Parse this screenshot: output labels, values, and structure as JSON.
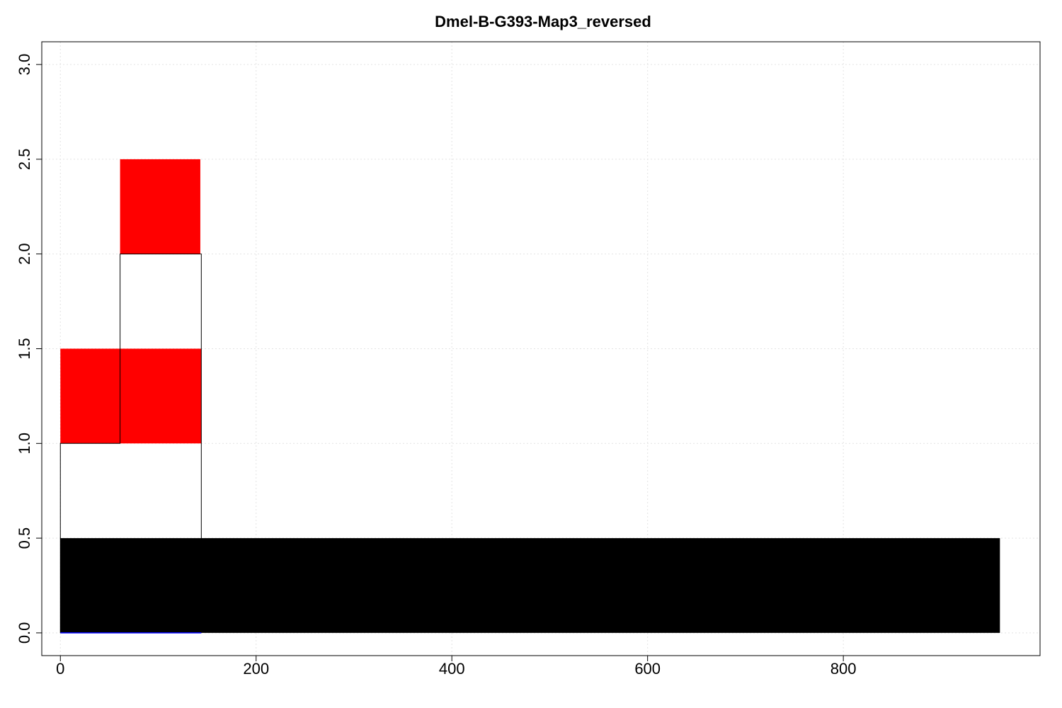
{
  "chart_data": {
    "type": "bar",
    "title": "Dmel-B-G393-Map3_reversed",
    "xlabel": "",
    "ylabel": "",
    "xlim": [
      -19,
      1001
    ],
    "ylim": [
      -0.12,
      3.12
    ],
    "grid": true,
    "x_ticks": [
      0,
      200,
      400,
      600,
      800
    ],
    "y_ticks": [
      0.0,
      0.5,
      1.0,
      1.5,
      2.0,
      2.5,
      3.0
    ],
    "x_tick_labels": [
      "0",
      "200",
      "400",
      "600",
      "800"
    ],
    "y_tick_labels": [
      "0.0",
      "0.5",
      "1.0",
      "1.5",
      "2.0",
      "2.5",
      "3.0"
    ],
    "segments": [
      {
        "name": "contig",
        "x0": 0,
        "x1": 960,
        "y0": 0.0,
        "y1": 0.5,
        "fill": "#000000"
      },
      {
        "name": "read-1",
        "x0": 0,
        "x1": 144,
        "y0": 1.0,
        "y1": 1.5,
        "fill": "#ff0000"
      },
      {
        "name": "read-2",
        "x0": 61,
        "x1": 143,
        "y0": 2.0,
        "y1": 2.5,
        "fill": "#ff0000"
      }
    ],
    "outlines": [
      {
        "name": "outline-1",
        "points": [
          [
            0,
            0.0
          ],
          [
            0,
            1.0
          ],
          [
            61,
            1.0
          ],
          [
            61,
            2.0
          ],
          [
            144,
            2.0
          ],
          [
            144,
            0.0
          ]
        ],
        "stroke": "#000000"
      }
    ],
    "baseline_line": {
      "x0": 0,
      "x1": 144,
      "y": 0.0,
      "stroke": "#0000ff"
    }
  }
}
